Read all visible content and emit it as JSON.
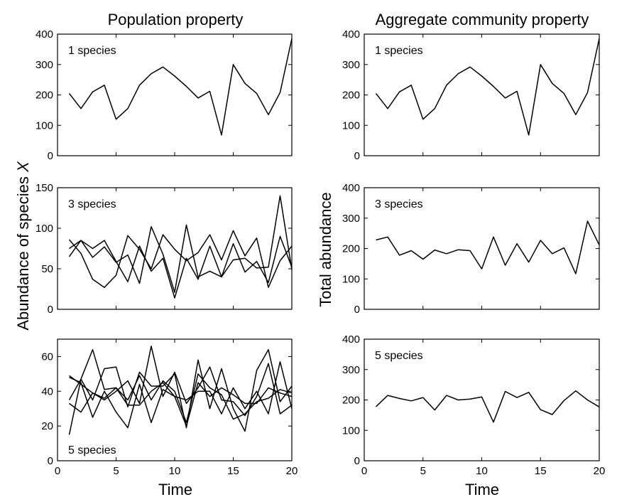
{
  "figure": {
    "left_title": "Population property",
    "right_title": "Aggregate community property",
    "left_ylabel_prefix": "Abundance of species ",
    "left_ylabel_var": "X",
    "right_ylabel": "Total abundance",
    "xlabel": "Time"
  },
  "chart_data": [
    {
      "type": "line",
      "label": "1 species",
      "ylim": [
        0,
        400
      ],
      "yticks": [
        0,
        100,
        200,
        300,
        400
      ],
      "xlim": [
        0,
        20
      ],
      "xticks": [
        0,
        5,
        10,
        15,
        20
      ],
      "x": [
        1,
        2,
        3,
        4,
        5,
        6,
        7,
        8,
        9,
        10,
        11,
        12,
        13,
        14,
        15,
        16,
        17,
        18,
        19,
        20
      ],
      "series": [
        {
          "values": [
            205,
            155,
            210,
            232,
            120,
            155,
            232,
            270,
            292,
            262,
            228,
            190,
            212,
            68,
            300,
            238,
            205,
            135,
            208,
            385
          ]
        }
      ]
    },
    {
      "type": "line",
      "label": "3 species",
      "ylim": [
        0,
        150
      ],
      "yticks": [
        0,
        50,
        100,
        150
      ],
      "xlim": [
        0,
        20
      ],
      "xticks": [
        0,
        5,
        10,
        15,
        20
      ],
      "x": [
        1,
        2,
        3,
        4,
        5,
        6,
        7,
        8,
        9,
        10,
        11,
        12,
        13,
        14,
        15,
        16,
        17,
        18,
        19,
        20
      ],
      "series": [
        {
          "values": [
            86,
            69,
            37,
            27,
            42,
            91,
            74,
            50,
            92,
            74,
            60,
            70,
            92,
            61,
            97,
            66,
            88,
            27,
            60,
            78
          ]
        },
        {
          "values": [
            75,
            85,
            64,
            77,
            58,
            67,
            32,
            102,
            68,
            21,
            104,
            40,
            47,
            40,
            61,
            63,
            51,
            52,
            140,
            49
          ]
        },
        {
          "values": [
            65,
            85,
            75,
            85,
            59,
            34,
            78,
            47,
            63,
            14,
            63,
            37,
            78,
            40,
            81,
            46,
            59,
            33,
            90,
            52
          ]
        }
      ]
    },
    {
      "type": "line",
      "label": "5 species",
      "ylim": [
        0,
        70
      ],
      "yticks": [
        0,
        20,
        40,
        60
      ],
      "xlim": [
        0,
        20
      ],
      "xticks": [
        0,
        5,
        10,
        15,
        20
      ],
      "x": [
        1,
        2,
        3,
        4,
        5,
        6,
        7,
        8,
        9,
        10,
        11,
        12,
        13,
        14,
        15,
        16,
        17,
        18,
        19,
        20
      ],
      "series": [
        {
          "values": [
            15,
            47,
            35,
            53,
            54,
            31,
            51,
            43,
            43,
            50,
            19,
            58,
            30,
            53,
            30,
            17,
            52,
            64,
            34,
            43
          ]
        },
        {
          "values": [
            33,
            28,
            39,
            35,
            40,
            46,
            33,
            66,
            37,
            51,
            33,
            42,
            54,
            35,
            34,
            26,
            37,
            56,
            27,
            32
          ]
        },
        {
          "values": [
            48,
            45,
            25,
            40,
            28,
            19,
            44,
            22,
            41,
            37,
            35,
            40,
            40,
            27,
            42,
            30,
            40,
            27,
            57,
            30
          ]
        },
        {
          "values": [
            35,
            47,
            64,
            41,
            42,
            35,
            49,
            35,
            46,
            40,
            22,
            50,
            42,
            38,
            24,
            27,
            34,
            36,
            41,
            39
          ]
        },
        {
          "values": [
            49,
            44,
            39,
            36,
            42,
            32,
            32,
            40,
            45,
            37,
            20,
            45,
            37,
            42,
            38,
            33,
            33,
            42,
            39,
            37
          ]
        }
      ]
    },
    {
      "type": "line",
      "label": "1 species",
      "ylim": [
        0,
        400
      ],
      "yticks": [
        0,
        100,
        200,
        300,
        400
      ],
      "xlim": [
        0,
        20
      ],
      "xticks": [
        0,
        5,
        10,
        15,
        20
      ],
      "x": [
        1,
        2,
        3,
        4,
        5,
        6,
        7,
        8,
        9,
        10,
        11,
        12,
        13,
        14,
        15,
        16,
        17,
        18,
        19,
        20
      ],
      "series": [
        {
          "values": [
            205,
            155,
            210,
            232,
            120,
            155,
            232,
            270,
            292,
            262,
            228,
            190,
            212,
            68,
            300,
            238,
            205,
            135,
            208,
            385
          ]
        }
      ]
    },
    {
      "type": "line",
      "label": "3 species",
      "ylim": [
        0,
        400
      ],
      "yticks": [
        0,
        100,
        200,
        300,
        400
      ],
      "xlim": [
        0,
        20
      ],
      "xticks": [
        0,
        5,
        10,
        15,
        20
      ],
      "x": [
        1,
        2,
        3,
        4,
        5,
        6,
        7,
        8,
        9,
        10,
        11,
        12,
        13,
        14,
        15,
        16,
        17,
        18,
        19,
        20
      ],
      "series": [
        {
          "values": [
            228,
            238,
            178,
            193,
            165,
            195,
            183,
            196,
            193,
            133,
            238,
            145,
            216,
            155,
            227,
            183,
            202,
            117,
            290,
            212
          ]
        }
      ]
    },
    {
      "type": "line",
      "label": "5 species",
      "ylim": [
        0,
        400
      ],
      "yticks": [
        0,
        100,
        200,
        300,
        400
      ],
      "xlim": [
        0,
        20
      ],
      "xticks": [
        0,
        5,
        10,
        15,
        20
      ],
      "x": [
        1,
        2,
        3,
        4,
        5,
        6,
        7,
        8,
        9,
        10,
        11,
        12,
        13,
        14,
        15,
        16,
        17,
        18,
        19,
        20
      ],
      "series": [
        {
          "values": [
            178,
            215,
            205,
            197,
            208,
            167,
            215,
            200,
            203,
            210,
            127,
            228,
            208,
            225,
            168,
            152,
            198,
            230,
            200,
            177
          ]
        }
      ]
    }
  ]
}
